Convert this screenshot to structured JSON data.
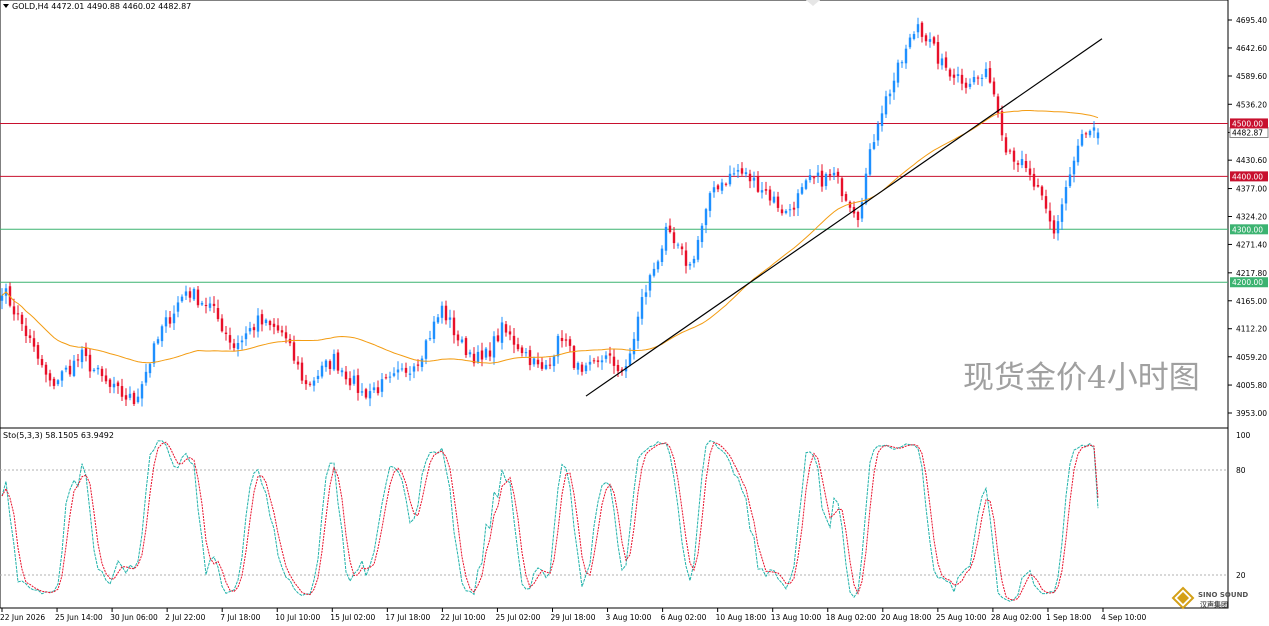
{
  "header": {
    "symbol_line": "GOLD,H4  4472.01 4490.88 4460.02 4482.87",
    "indicator_line": "Sto(5,3,3) 58.1505 63.9492"
  },
  "watermark": "现货金价4小时图",
  "logo": {
    "line1": "SINO SOUND",
    "line2": "汉声集团"
  },
  "colors": {
    "up": "#1e90ff",
    "down": "#e8102a",
    "ma": "#f39c12",
    "resistance": "#c8102e",
    "support": "#3cb371",
    "trendline": "#000000",
    "stoch_main": "#20b2aa",
    "stoch_signal": "#e8102a"
  },
  "chart_data": [
    {
      "type": "candlestick",
      "symbol": "GOLD",
      "timeframe": "H4",
      "ohlc_last": {
        "open": 4472.01,
        "high": 4490.88,
        "low": 4460.02,
        "close": 4482.87
      },
      "current_price_label": "4482.87",
      "ylim": [
        3920,
        4720
      ],
      "y_ticks": [
        "4695.40",
        "4642.60",
        "4589.60",
        "4536.20",
        "4483.00",
        "4430.60",
        "4377.00",
        "4324.20",
        "4271.40",
        "4217.80",
        "4165.00",
        "4112.20",
        "4059.20",
        "4005.80",
        "3953.00"
      ],
      "x_ticks": [
        "22 Jun 2026",
        "25 Jun 14:00",
        "30 Jun 06:00",
        "2 Jul 22:00",
        "7 Jul 18:00",
        "10 Jul 10:00",
        "15 Jul 02:00",
        "17 Jul 18:00",
        "22 Jul 10:00",
        "25 Jul 02:00",
        "29 Jul 18:00",
        "3 Aug 10:00",
        "6 Aug 02:00",
        "10 Aug 18:00",
        "13 Aug 10:00",
        "18 Aug 02:00",
        "20 Aug 18:00",
        "25 Aug 10:00",
        "28 Aug 02:00",
        "1 Sep 18:00",
        "4 Sep 10:00"
      ],
      "levels": [
        {
          "value": 4500,
          "label": "4500.00",
          "kind": "resistance"
        },
        {
          "value": 4400,
          "label": "4400.00",
          "kind": "resistance"
        },
        {
          "value": 4300,
          "label": "4300.00",
          "kind": "support"
        },
        {
          "value": 4200,
          "label": "4200.00",
          "kind": "support"
        }
      ],
      "trendline": {
        "from": {
          "bar": 146,
          "price": 3985
        },
        "to": {
          "bar": 275,
          "price": 4660
        }
      },
      "close_path": [
        [
          0,
          4190
        ],
        [
          5,
          4120
        ],
        [
          12,
          4005
        ],
        [
          20,
          4060
        ],
        [
          27,
          4000
        ],
        [
          33,
          3975
        ],
        [
          40,
          4110
        ],
        [
          46,
          4185
        ],
        [
          52,
          4155
        ],
        [
          58,
          4080
        ],
        [
          64,
          4125
        ],
        [
          70,
          4105
        ],
        [
          76,
          4005
        ],
        [
          83,
          4055
        ],
        [
          90,
          3990
        ],
        [
          97,
          4010
        ],
        [
          104,
          4055
        ],
        [
          110,
          4150
        ],
        [
          115,
          4080
        ],
        [
          120,
          4050
        ],
        [
          125,
          4110
        ],
        [
          130,
          4075
        ],
        [
          135,
          4030
        ],
        [
          140,
          4100
        ],
        [
          145,
          4020
        ],
        [
          150,
          4060
        ],
        [
          156,
          4030
        ],
        [
          160,
          4165
        ],
        [
          166,
          4290
        ],
        [
          172,
          4230
        ],
        [
          178,
          4380
        ],
        [
          184,
          4410
        ],
        [
          190,
          4380
        ],
        [
          196,
          4330
        ],
        [
          202,
          4390
        ],
        [
          208,
          4400
        ],
        [
          214,
          4330
        ],
        [
          219,
          4510
        ],
        [
          224,
          4600
        ],
        [
          229,
          4690
        ],
        [
          235,
          4610
        ],
        [
          241,
          4580
        ],
        [
          247,
          4590
        ],
        [
          251,
          4460
        ],
        [
          255,
          4420
        ],
        [
          259,
          4370
        ],
        [
          263,
          4290
        ],
        [
          266,
          4380
        ],
        [
          270,
          4475
        ],
        [
          274,
          4483
        ]
      ],
      "ma_period": 50,
      "series": [
        {
          "name": "Sto(5,3,3)",
          "main": 58.1505,
          "signal": 63.9492
        }
      ],
      "stoch_levels": {
        "upper": 80,
        "lower": 20,
        "max": 100
      },
      "stoch_ticks": [
        "100",
        "80",
        "20"
      ]
    }
  ]
}
